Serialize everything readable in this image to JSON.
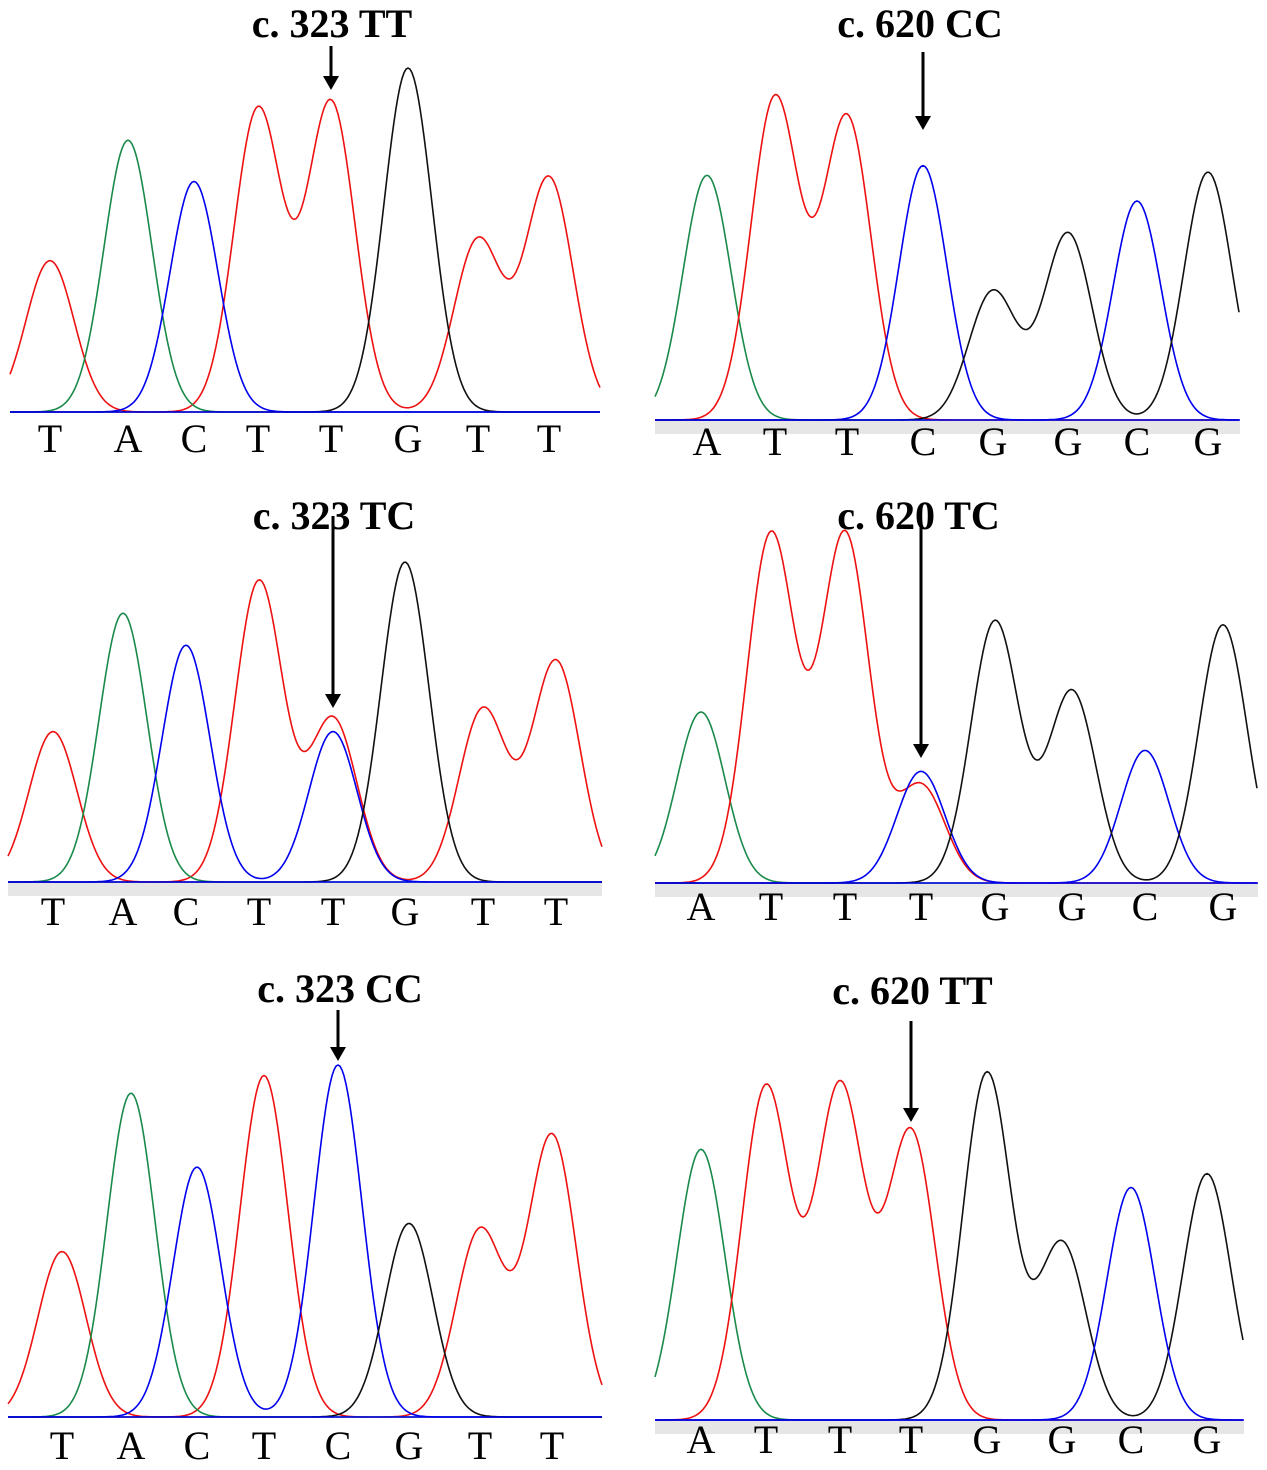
{
  "colors": {
    "A": "#1a8a4a",
    "C": "#0000ee",
    "G": "#111111",
    "T": "#ee1111",
    "baseline_band": "#e6e6e6",
    "arrow": "#000000"
  },
  "chart_data": [
    {
      "type": "line",
      "title": "c. 323 TT",
      "sequence": [
        "T",
        "A",
        "C",
        "T",
        "T",
        "G",
        "T",
        "T"
      ],
      "arrow_at_base_index": 4,
      "series": [
        {
          "name": "T",
          "x": [
            1,
            4,
            5,
            7,
            8
          ],
          "values": [
            0.44,
            0.88,
            0.9,
            0.5,
            0.68
          ]
        },
        {
          "name": "A",
          "x": [
            2
          ],
          "values": [
            0.79
          ]
        },
        {
          "name": "C",
          "x": [
            3
          ],
          "values": [
            0.67
          ]
        },
        {
          "name": "G",
          "x": [
            6
          ],
          "values": [
            1.0
          ]
        }
      ],
      "ylim": [
        0,
        1
      ]
    },
    {
      "type": "line",
      "title": "c. 620 CC",
      "sequence": [
        "A",
        "T",
        "T",
        "C",
        "G",
        "G",
        "C",
        "G"
      ],
      "arrow_at_base_index": 3,
      "series": [
        {
          "name": "A",
          "x": [
            1
          ],
          "values": [
            0.76
          ]
        },
        {
          "name": "T",
          "x": [
            2,
            3
          ],
          "values": [
            1.0,
            0.94
          ]
        },
        {
          "name": "C",
          "x": [
            4,
            7
          ],
          "values": [
            0.79,
            0.68
          ]
        },
        {
          "name": "G",
          "x": [
            5,
            6,
            8
          ],
          "values": [
            0.4,
            0.58,
            0.77
          ]
        }
      ],
      "ylim": [
        0,
        1
      ]
    },
    {
      "type": "line",
      "title": "c. 323 TC",
      "sequence": [
        "T",
        "A",
        "C",
        "T",
        "T",
        "G",
        "T",
        "T"
      ],
      "arrow_at_base_index": 4,
      "series": [
        {
          "name": "T",
          "x": [
            1,
            4,
            5,
            7,
            8
          ],
          "values": [
            0.47,
            0.94,
            0.51,
            0.54,
            0.69
          ]
        },
        {
          "name": "A",
          "x": [
            2
          ],
          "values": [
            0.84
          ]
        },
        {
          "name": "C",
          "x": [
            3,
            5
          ],
          "values": [
            0.74,
            0.47
          ]
        },
        {
          "name": "G",
          "x": [
            6
          ],
          "values": [
            1.0
          ]
        }
      ],
      "ylim": [
        0,
        1
      ]
    },
    {
      "type": "line",
      "title": "c. 620 TC",
      "sequence": [
        "A",
        "T",
        "T",
        "T",
        "G",
        "G",
        "C",
        "G"
      ],
      "arrow_at_base_index": 3,
      "series": [
        {
          "name": "A",
          "x": [
            1
          ],
          "values": [
            0.49
          ]
        },
        {
          "name": "T",
          "x": [
            2,
            3,
            4
          ],
          "values": [
            1.0,
            1.0,
            0.28
          ]
        },
        {
          "name": "C",
          "x": [
            4,
            7
          ],
          "values": [
            0.32,
            0.38
          ]
        },
        {
          "name": "G",
          "x": [
            5,
            6,
            8
          ],
          "values": [
            0.75,
            0.55,
            0.74
          ]
        }
      ],
      "ylim": [
        0,
        1
      ]
    },
    {
      "type": "line",
      "title": "c. 323 CC",
      "sequence": [
        "T",
        "A",
        "C",
        "T",
        "C",
        "G",
        "T",
        "T"
      ],
      "arrow_at_base_index": 4,
      "series": [
        {
          "name": "T",
          "x": [
            1,
            4,
            7,
            8
          ],
          "values": [
            0.47,
            0.97,
            0.53,
            0.8
          ]
        },
        {
          "name": "A",
          "x": [
            2
          ],
          "values": [
            0.92
          ]
        },
        {
          "name": "C",
          "x": [
            3,
            5
          ],
          "values": [
            0.71,
            1.0
          ]
        },
        {
          "name": "G",
          "x": [
            6
          ],
          "values": [
            0.55
          ]
        }
      ],
      "ylim": [
        0,
        1
      ]
    },
    {
      "type": "line",
      "title": "c. 620 TT",
      "sequence": [
        "A",
        "T",
        "T",
        "T",
        "G",
        "G",
        "C",
        "G"
      ],
      "arrow_at_base_index": 3,
      "series": [
        {
          "name": "A",
          "x": [
            1
          ],
          "values": [
            0.78
          ]
        },
        {
          "name": "T",
          "x": [
            2,
            3,
            4
          ],
          "values": [
            0.96,
            0.96,
            0.83
          ]
        },
        {
          "name": "G",
          "x": [
            5,
            6,
            8
          ],
          "values": [
            1.0,
            0.51,
            0.71
          ]
        },
        {
          "name": "C",
          "x": [
            7
          ],
          "values": [
            0.67
          ]
        }
      ],
      "ylim": [
        0,
        1
      ]
    }
  ]
}
